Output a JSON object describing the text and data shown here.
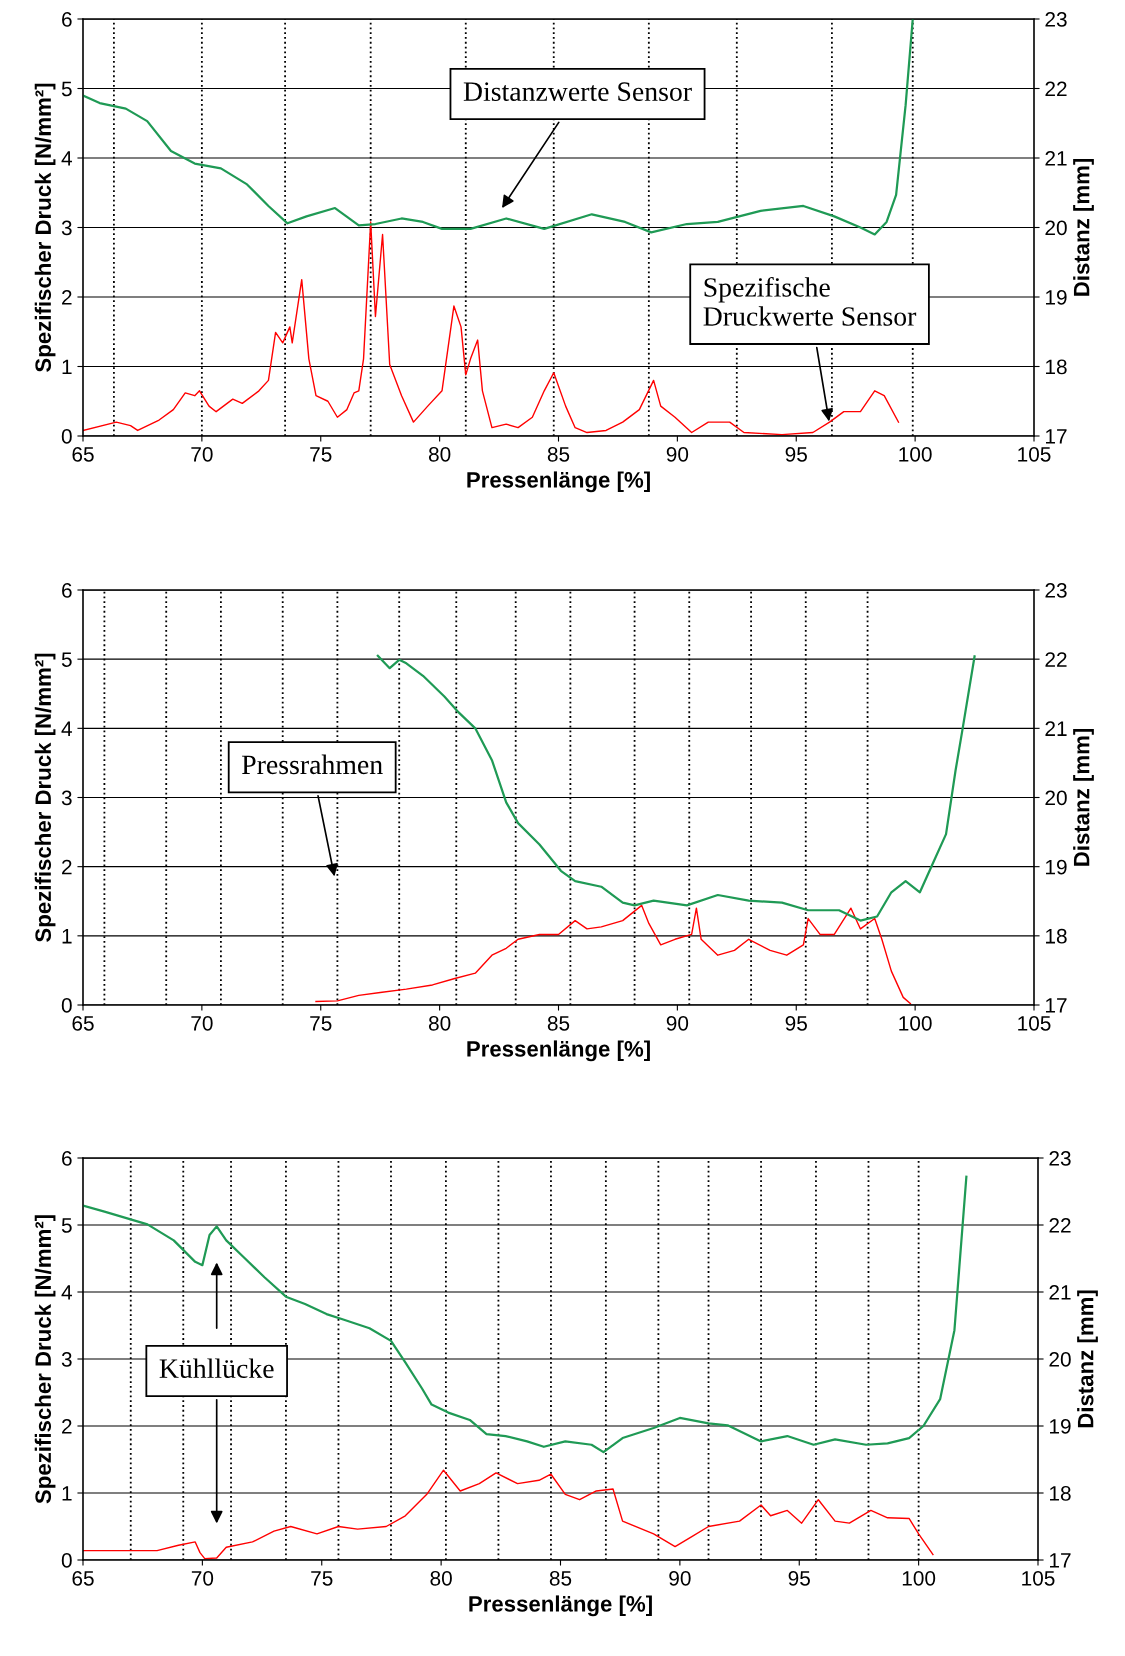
{
  "chart_data": [
    {
      "type": "line",
      "xlabel": "Pressenlänge [%]",
      "ylabel": "Spezifischer Druck [N/mm²]",
      "y2label": "Distanz [mm]",
      "xlim": [
        65,
        105
      ],
      "xticks": [
        65,
        70,
        75,
        80,
        85,
        90,
        95,
        100,
        105
      ],
      "ylim": [
        0,
        6
      ],
      "yticks": [
        0,
        1,
        2,
        3,
        4,
        5,
        6
      ],
      "y2lim": [
        17,
        23
      ],
      "y2ticks": [
        17,
        18,
        19,
        20,
        21,
        22,
        23
      ],
      "grid": "y",
      "series": [
        {
          "color": "#ff0000",
          "x": [
            65.0,
            66.4,
            67.0,
            67.3,
            68.2,
            68.8,
            69.3,
            69.7,
            69.9,
            70.3,
            70.6,
            71.3,
            71.7,
            72.4,
            72.8,
            73.1,
            73.4,
            73.7,
            73.8,
            74.2,
            74.5,
            74.8,
            75.3,
            75.7,
            76.1,
            76.4,
            76.6,
            76.8,
            77.1,
            77.3,
            77.6,
            77.9,
            78.4,
            78.9,
            79.5,
            80.1,
            80.6,
            80.9,
            81.1,
            81.3,
            81.6,
            81.8,
            82.2,
            82.8,
            83.3,
            83.9,
            84.4,
            84.8,
            85.3,
            85.7,
            86.2,
            87.0,
            87.7,
            88.4,
            89.0,
            89.3,
            89.9,
            90.6,
            91.3,
            92.2,
            92.8,
            94.4,
            95.7,
            96.4,
            97.0,
            97.7,
            98.3,
            98.7,
            99.3
          ],
          "values": [
            0.08,
            0.2,
            0.15,
            0.08,
            0.23,
            0.38,
            0.62,
            0.58,
            0.65,
            0.43,
            0.35,
            0.53,
            0.47,
            0.65,
            0.8,
            1.49,
            1.34,
            1.57,
            1.34,
            2.25,
            1.11,
            0.58,
            0.5,
            0.27,
            0.38,
            0.62,
            0.65,
            1.11,
            3.08,
            1.72,
            2.9,
            1.03,
            0.58,
            0.2,
            0.43,
            0.65,
            1.87,
            1.57,
            0.88,
            1.11,
            1.38,
            0.65,
            0.12,
            0.17,
            0.12,
            0.27,
            0.65,
            0.91,
            0.43,
            0.12,
            0.05,
            0.08,
            0.2,
            0.38,
            0.8,
            0.43,
            0.27,
            0.05,
            0.2,
            0.2,
            0.05,
            0.02,
            0.05,
            0.2,
            0.35,
            0.35,
            0.65,
            0.58,
            0.2
          ]
        },
        {
          "color": "#1f9a55",
          "axis": "y2",
          "x": [
            65.0,
            65.7,
            66.8,
            67.7,
            68.7,
            69.7,
            70.8,
            71.9,
            72.8,
            73.6,
            74.4,
            75.6,
            76.6,
            77.3,
            78.4,
            79.3,
            80.1,
            81.3,
            82.8,
            84.4,
            86.4,
            87.8,
            88.9,
            90.4,
            91.7,
            93.5,
            95.3,
            96.6,
            97.7,
            98.3,
            98.8,
            99.2,
            99.6,
            99.9
          ],
          "values": [
            21.9,
            21.79,
            21.71,
            21.53,
            21.1,
            20.92,
            20.85,
            20.62,
            20.31,
            20.06,
            20.16,
            20.28,
            20.03,
            20.05,
            20.13,
            20.08,
            19.98,
            19.98,
            20.13,
            19.98,
            20.19,
            20.08,
            19.93,
            20.05,
            20.08,
            20.24,
            20.31,
            20.16,
            20.0,
            19.9,
            20.08,
            20.47,
            21.76,
            23.0
          ]
        }
      ],
      "ref_lines": [
        {
          "axis": "x",
          "value": 66.3,
          "color": "#000000",
          "line_style": "dotted"
        },
        {
          "axis": "x",
          "value": 70.0,
          "color": "#000000",
          "line_style": "dotted"
        },
        {
          "axis": "x",
          "value": 73.5,
          "color": "#000000",
          "line_style": "dotted"
        },
        {
          "axis": "x",
          "value": 77.1,
          "color": "#000000",
          "line_style": "dotted"
        },
        {
          "axis": "x",
          "value": 81.1,
          "color": "#000000",
          "line_style": "dotted"
        },
        {
          "axis": "x",
          "value": 84.8,
          "color": "#000000",
          "line_style": "dotted"
        },
        {
          "axis": "x",
          "value": 88.8,
          "color": "#000000",
          "line_style": "dotted"
        },
        {
          "axis": "x",
          "value": 92.5,
          "color": "#000000",
          "line_style": "dotted"
        },
        {
          "axis": "x",
          "value": 96.5,
          "color": "#000000",
          "line_style": "dotted"
        },
        {
          "axis": "x",
          "value": 99.9,
          "color": "#000000",
          "line_style": "dotted"
        }
      ],
      "annotations": [
        "Distanzwerte Sensor",
        {
          "text": "Spezifische\nDruckwerte Sensor",
          "x": 96.4,
          "y": 0.17
        }
      ]
    },
    {
      "type": "line",
      "xlabel": "Pressenlänge [%]",
      "ylabel": "Spezifischer Druck [N/mm²]",
      "y2label": "Distanz [mm]",
      "xlim": [
        65,
        105
      ],
      "xticks": [
        65,
        70,
        75,
        80,
        85,
        90,
        95,
        100,
        105
      ],
      "ylim": [
        0,
        6
      ],
      "yticks": [
        0,
        1,
        2,
        3,
        4,
        5,
        6
      ],
      "y2lim": [
        17,
        23
      ],
      "y2ticks": [
        17,
        18,
        19,
        20,
        21,
        22,
        23
      ],
      "grid": "y",
      "series": [
        {
          "color": "#ff0000",
          "x": [
            74.8,
            75.7,
            76.6,
            77.5,
            78.6,
            79.7,
            80.6,
            81.5,
            82.2,
            82.8,
            83.3,
            84.2,
            85.0,
            85.7,
            86.2,
            86.8,
            87.7,
            88.5,
            88.8,
            89.3,
            89.9,
            90.6,
            90.8,
            91.0,
            91.7,
            92.4,
            93.0,
            93.9,
            94.6,
            95.3,
            95.5,
            96.0,
            96.6,
            97.3,
            97.7,
            98.3,
            98.6,
            99.0,
            99.5,
            99.8
          ],
          "values": [
            0.05,
            0.06,
            0.14,
            0.18,
            0.23,
            0.29,
            0.38,
            0.46,
            0.72,
            0.82,
            0.95,
            1.02,
            1.02,
            1.22,
            1.1,
            1.13,
            1.22,
            1.44,
            1.18,
            0.87,
            0.95,
            1.02,
            1.4,
            0.95,
            0.72,
            0.79,
            0.95,
            0.79,
            0.72,
            0.87,
            1.25,
            1.02,
            1.02,
            1.4,
            1.1,
            1.25,
            0.95,
            0.49,
            0.11,
            0.02
          ]
        },
        {
          "color": "#1f9a55",
          "axis": "y2",
          "x": [
            77.4,
            77.9,
            78.3,
            78.6,
            79.3,
            80.2,
            80.8,
            81.5,
            82.2,
            82.8,
            83.3,
            84.2,
            85.1,
            85.7,
            86.8,
            87.7,
            88.2,
            89.0,
            90.4,
            91.7,
            93.0,
            94.4,
            95.5,
            96.8,
            97.7,
            98.4,
            99.0,
            99.6,
            100.2,
            100.8,
            101.3,
            101.7,
            102.0,
            102.5
          ],
          "values": [
            22.05,
            21.87,
            21.99,
            21.94,
            21.76,
            21.46,
            21.23,
            21.0,
            20.54,
            19.93,
            19.63,
            19.32,
            18.94,
            18.79,
            18.71,
            18.48,
            18.44,
            18.51,
            18.44,
            18.59,
            18.51,
            18.48,
            18.37,
            18.37,
            18.22,
            18.28,
            18.63,
            18.79,
            18.63,
            19.09,
            19.47,
            20.39,
            21.0,
            22.04
          ]
        }
      ],
      "ref_lines": [
        {
          "axis": "x",
          "value": 65.9,
          "color": "#000000",
          "line_style": "dotted"
        },
        {
          "axis": "x",
          "value": 68.5,
          "color": "#000000",
          "line_style": "dotted"
        },
        {
          "axis": "x",
          "value": 70.8,
          "color": "#000000",
          "line_style": "dotted"
        },
        {
          "axis": "x",
          "value": 73.4,
          "color": "#000000",
          "line_style": "dotted"
        },
        {
          "axis": "x",
          "value": 75.7,
          "color": "#000000",
          "line_style": "dotted"
        },
        {
          "axis": "x",
          "value": 78.3,
          "color": "#000000",
          "line_style": "dotted"
        },
        {
          "axis": "x",
          "value": 80.7,
          "color": "#000000",
          "line_style": "dotted"
        },
        {
          "axis": "x",
          "value": 83.2,
          "color": "#000000",
          "line_style": "dotted"
        },
        {
          "axis": "x",
          "value": 85.5,
          "color": "#000000",
          "line_style": "dotted"
        },
        {
          "axis": "x",
          "value": 88.2,
          "color": "#000000",
          "line_style": "dotted"
        },
        {
          "axis": "x",
          "value": 90.5,
          "color": "#000000",
          "line_style": "dotted"
        },
        {
          "axis": "x",
          "value": 93.1,
          "color": "#000000",
          "line_style": "dotted"
        },
        {
          "axis": "x",
          "value": 95.4,
          "color": "#000000",
          "line_style": "dotted"
        },
        {
          "axis": "x",
          "value": 98.0,
          "color": "#000000",
          "line_style": "dotted"
        }
      ],
      "annotations": [
        {
          "text": "Pressrahmen",
          "x": 75.6,
          "y": 1.82
        }
      ]
    },
    {
      "type": "line",
      "xlabel": "Pressenlänge [%]",
      "ylabel": "Spezifischer Druck [N/mm²]",
      "y2label": "Distanz [mm]",
      "xlim": [
        65,
        105
      ],
      "xticks": [
        65,
        70,
        75,
        80,
        85,
        90,
        95,
        100,
        105
      ],
      "ylim": [
        0,
        6
      ],
      "yticks": [
        0,
        1,
        2,
        3,
        4,
        5,
        6
      ],
      "y2lim": [
        17,
        23
      ],
      "y2ticks": [
        17,
        18,
        19,
        20,
        21,
        22,
        23
      ],
      "grid": "y",
      "series": [
        {
          "color": "#ff0000",
          "x": [
            65.0,
            68.1,
            69.0,
            69.7,
            69.9,
            70.1,
            70.6,
            71.0,
            72.1,
            73.0,
            73.7,
            74.8,
            75.7,
            76.5,
            77.7,
            78.5,
            79.4,
            80.1,
            80.8,
            81.6,
            82.3,
            83.2,
            84.1,
            84.6,
            85.2,
            85.8,
            86.5,
            87.2,
            87.6,
            88.9,
            89.8,
            90.5,
            91.2,
            92.5,
            93.4,
            93.8,
            94.5,
            95.1,
            95.8,
            96.5,
            97.1,
            98.0,
            98.7,
            99.6,
            100.0,
            100.6
          ],
          "values": [
            0.14,
            0.14,
            0.22,
            0.27,
            0.11,
            0.02,
            0.03,
            0.19,
            0.27,
            0.43,
            0.5,
            0.39,
            0.5,
            0.46,
            0.5,
            0.66,
            0.98,
            1.34,
            1.03,
            1.14,
            1.3,
            1.14,
            1.19,
            1.28,
            0.98,
            0.9,
            1.03,
            1.06,
            0.58,
            0.39,
            0.2,
            0.35,
            0.5,
            0.58,
            0.82,
            0.66,
            0.74,
            0.55,
            0.9,
            0.58,
            0.55,
            0.74,
            0.63,
            0.62,
            0.39,
            0.08
          ]
        },
        {
          "color": "#1f9a55",
          "axis": "y2",
          "x": [
            65.0,
            65.9,
            67.7,
            68.8,
            69.7,
            70.0,
            70.3,
            70.6,
            71.0,
            71.7,
            72.6,
            73.5,
            74.3,
            75.2,
            75.9,
            77.0,
            77.9,
            78.5,
            79.2,
            79.6,
            80.3,
            81.2,
            81.9,
            82.7,
            83.6,
            84.3,
            85.2,
            86.3,
            86.8,
            87.6,
            88.9,
            90.0,
            91.2,
            92.0,
            93.4,
            94.5,
            95.6,
            96.5,
            97.8,
            98.7,
            99.6,
            100.2,
            100.9,
            101.5,
            102.0
          ],
          "values": [
            22.29,
            22.2,
            22.01,
            21.77,
            21.45,
            21.4,
            21.85,
            21.98,
            21.77,
            21.53,
            21.22,
            20.93,
            20.82,
            20.67,
            20.59,
            20.46,
            20.27,
            19.95,
            19.56,
            19.32,
            19.2,
            19.09,
            18.88,
            18.85,
            18.77,
            18.69,
            18.77,
            18.72,
            18.61,
            18.82,
            18.97,
            19.12,
            19.04,
            19.01,
            18.77,
            18.85,
            18.72,
            18.8,
            18.72,
            18.74,
            18.82,
            19.0,
            19.4,
            20.43,
            22.72
          ]
        }
      ],
      "ref_lines": [
        {
          "axis": "x",
          "value": 67.0,
          "color": "#000000",
          "line_style": "dotted"
        },
        {
          "axis": "x",
          "value": 69.2,
          "color": "#000000",
          "line_style": "dotted"
        },
        {
          "axis": "x",
          "value": 71.2,
          "color": "#000000",
          "line_style": "dotted"
        },
        {
          "axis": "x",
          "value": 73.5,
          "color": "#000000",
          "line_style": "dotted"
        },
        {
          "axis": "x",
          "value": 75.7,
          "color": "#000000",
          "line_style": "dotted"
        },
        {
          "axis": "x",
          "value": 77.9,
          "color": "#000000",
          "line_style": "dotted"
        },
        {
          "axis": "x",
          "value": 80.2,
          "color": "#000000",
          "line_style": "dotted"
        },
        {
          "axis": "x",
          "value": 82.4,
          "color": "#000000",
          "line_style": "dotted"
        },
        {
          "axis": "x",
          "value": 84.6,
          "color": "#000000",
          "line_style": "dotted"
        },
        {
          "axis": "x",
          "value": 86.9,
          "color": "#000000",
          "line_style": "dotted"
        },
        {
          "axis": "x",
          "value": 89.1,
          "color": "#000000",
          "line_style": "dotted"
        },
        {
          "axis": "x",
          "value": 91.2,
          "color": "#000000",
          "line_style": "dotted"
        },
        {
          "axis": "x",
          "value": 93.4,
          "color": "#000000",
          "line_style": "dotted"
        },
        {
          "axis": "x",
          "value": 95.7,
          "color": "#000000",
          "line_style": "dotted"
        },
        {
          "axis": "x",
          "value": 97.9,
          "color": "#000000",
          "line_style": "dotted"
        },
        {
          "axis": "x",
          "value": 100.0,
          "color": "#000000",
          "line_style": "dotted"
        }
      ],
      "annotations": [
        "Kühllücke"
      ]
    }
  ]
}
